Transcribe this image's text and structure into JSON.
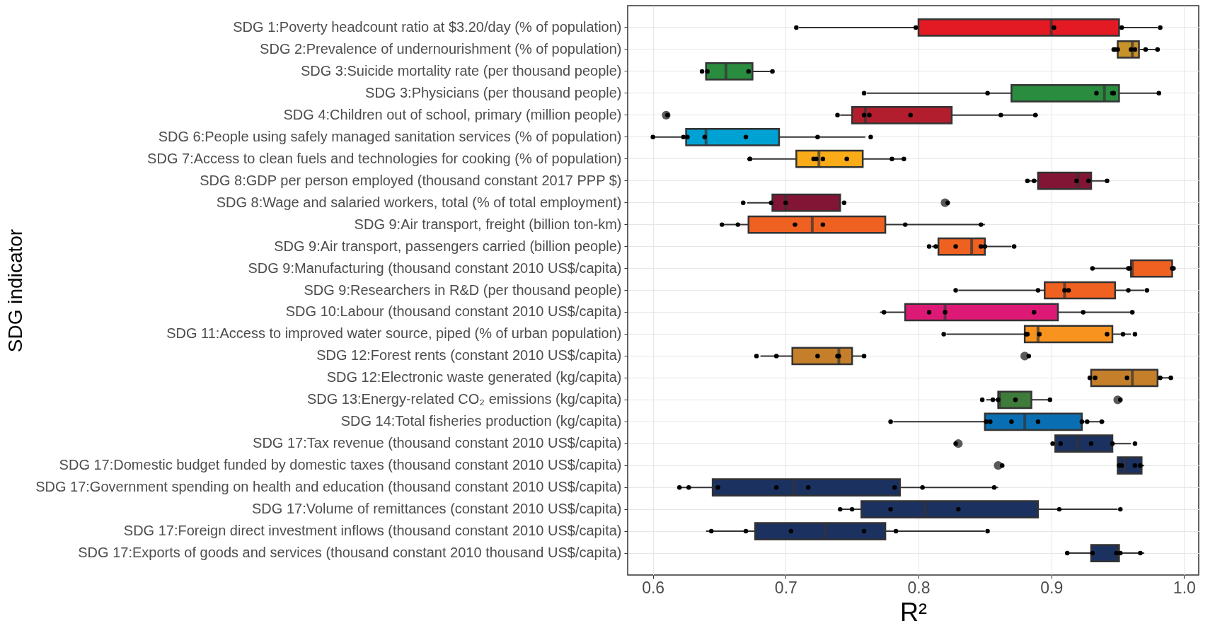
{
  "chart_data": {
    "type": "box",
    "orientation": "horizontal",
    "xlabel": "R²",
    "ylabel": "SDG indicator",
    "categories": [
      "SDG 1:Poverty headcount ratio at $3.20/day (% of population)",
      "SDG 2:Prevalence of undernourishment (% of population)",
      "SDG 3:Suicide mortality rate (per thousand people)",
      "SDG 3:Physicians (per thousand people)",
      "SDG 4:Children out of school, primary (million people)",
      "SDG 6:People using safely managed sanitation services (% of population)",
      "SDG 7:Access to clean fuels and technologies for cooking (% of population)",
      "SDG 8:GDP per person employed (thousand constant 2017 PPP $)",
      "SDG 8:Wage and salaried workers, total (% of total employment)",
      "SDG 9:Air transport, freight (billion ton-km)",
      "SDG 9:Air transport, passengers carried (billion people)",
      "SDG 9:Manufacturing (thousand constant 2010 US$/capita)",
      "SDG 9:Researchers in R&D (per thousand people)",
      "SDG 10:Labour (thousand constant 2010 US$/capita)",
      "SDG 11:Access to improved water source, piped (% of urban population)",
      "SDG 12:Forest rents (constant 2010 US$/capita)",
      "SDG 12:Electronic waste generated (kg/capita)",
      "SDG 13:Energy-related CO₂ emissions (kg/capita)",
      "SDG 14:Total fisheries production (kg/capita)",
      "SDG 17:Tax revenue (thousand constant 2010 US$/capita)",
      "SDG 17:Domestic budget funded by domestic taxes (thousand constant 2010 US$/capita)",
      "SDG 17:Government spending on health and education (thousand constant 2010 US$/capita)",
      "SDG 17:Volume of remittances (constant 2010 US$/capita)",
      "SDG 17:Foreign direct investment inflows (thousand constant 2010 US$/capita)",
      "SDG 17:Exports of goods and services (thousand constant 2010 thousand US$/capita)"
    ],
    "colors": [
      "#e31a23",
      "#c8922a",
      "#2a8c3f",
      "#2a8c3f",
      "#b31e2e",
      "#00a1d3",
      "#f9ab18",
      "#821535",
      "#821535",
      "#ef6121",
      "#ef6121",
      "#ef6121",
      "#ef6121",
      "#dc1a76",
      "#f7931e",
      "#c57f2a",
      "#c57f2a",
      "#3f7b3a",
      "#0a6fb2",
      "#1b3160",
      "#1b3160",
      "#1b3160",
      "#1b3160",
      "#1b3160",
      "#1b3160"
    ],
    "boxes": [
      {
        "low": 0.71,
        "q1": 0.8,
        "median": 0.9,
        "q3": 0.951,
        "high": 0.98
      },
      {
        "low": 0.95,
        "q1": 0.95,
        "median": 0.961,
        "q3": 0.966,
        "high": 0.98
      },
      {
        "low": 0.64,
        "q1": 0.64,
        "median": 0.655,
        "q3": 0.675,
        "high": 0.69
      },
      {
        "low": 0.761,
        "q1": 0.87,
        "median": 0.94,
        "q3": 0.951,
        "high": 0.98
      },
      {
        "low": 0.741,
        "q1": 0.75,
        "median": 0.76,
        "q3": 0.825,
        "high": 0.89,
        "outliers": [
          0.61
        ]
      },
      {
        "low": 0.601,
        "q1": 0.625,
        "median": 0.64,
        "q3": 0.695,
        "high": 0.76
      },
      {
        "low": 0.671,
        "q1": 0.708,
        "median": 0.725,
        "q3": 0.758,
        "high": 0.79
      },
      {
        "low": 0.881,
        "q1": 0.89,
        "median": 0.92,
        "q3": 0.93,
        "high": 0.942
      },
      {
        "low": 0.671,
        "q1": 0.69,
        "median": 0.7,
        "q3": 0.741,
        "high": 0.741,
        "outliers": [
          0.82
        ]
      },
      {
        "low": 0.651,
        "q1": 0.672,
        "median": 0.72,
        "q3": 0.775,
        "high": 0.85
      },
      {
        "low": 0.81,
        "q1": 0.815,
        "median": 0.84,
        "q3": 0.85,
        "high": 0.87
      },
      {
        "low": 0.931,
        "q1": 0.96,
        "median": 0.961,
        "q3": 0.991,
        "high": 0.991
      },
      {
        "low": 0.83,
        "q1": 0.895,
        "median": 0.91,
        "q3": 0.948,
        "high": 0.97
      },
      {
        "low": 0.771,
        "q1": 0.79,
        "median": 0.82,
        "q3": 0.905,
        "high": 0.96
      },
      {
        "low": 0.821,
        "q1": 0.88,
        "median": 0.89,
        "q3": 0.946,
        "high": 0.96
      },
      {
        "low": 0.681,
        "q1": 0.705,
        "median": 0.74,
        "q3": 0.75,
        "high": 0.759,
        "outliers": [
          0.88
        ]
      },
      {
        "low": 0.93,
        "q1": 0.93,
        "median": 0.961,
        "q3": 0.98,
        "high": 0.99
      },
      {
        "low": 0.851,
        "q1": 0.86,
        "median": 0.861,
        "q3": 0.885,
        "high": 0.9,
        "outliers": [
          0.95
        ]
      },
      {
        "low": 0.781,
        "q1": 0.85,
        "median": 0.88,
        "q3": 0.923,
        "high": 0.94
      },
      {
        "low": 0.901,
        "q1": 0.903,
        "median": 0.92,
        "q3": 0.946,
        "high": 0.96,
        "outliers": [
          0.83
        ]
      },
      {
        "low": 0.95,
        "q1": 0.95,
        "median": 0.955,
        "q3": 0.968,
        "high": 0.97,
        "outliers": [
          0.86
        ]
      },
      {
        "low": 0.621,
        "q1": 0.645,
        "median": 0.706,
        "q3": 0.786,
        "high": 0.86
      },
      {
        "low": 0.741,
        "q1": 0.757,
        "median": 0.805,
        "q3": 0.89,
        "high": 0.95
      },
      {
        "low": 0.64,
        "q1": 0.677,
        "median": 0.73,
        "q3": 0.775,
        "high": 0.85
      },
      {
        "low": 0.911,
        "q1": 0.93,
        "median": 0.95,
        "q3": 0.951,
        "high": 0.97
      }
    ],
    "xlim": [
      0.581,
      1.011
    ],
    "xticks": [
      0.6,
      0.7,
      0.8,
      0.9,
      {
        "value": 1.0,
        "label": "1.0"
      }
    ],
    "grid": true,
    "series": [
      {
        "type": "scatter",
        "color": "#000000",
        "x": [
          "SDG 1:Poverty headcount ratio at $3.20/day (% of population)",
          "SDG 1:Poverty headcount ratio at $3.20/day (% of population)",
          "SDG 1:Poverty headcount ratio at $3.20/day (% of population)",
          "SDG 1:Poverty headcount ratio at $3.20/day (% of population)",
          "SDG 1:Poverty headcount ratio at $3.20/day (% of population)",
          "SDG 2:Prevalence of undernourishment (% of population)",
          "SDG 2:Prevalence of undernourishment (% of population)",
          "SDG 2:Prevalence of undernourishment (% of population)",
          "SDG 2:Prevalence of undernourishment (% of population)",
          "SDG 2:Prevalence of undernourishment (% of population)",
          "SDG 2:Prevalence of undernourishment (% of population)",
          "SDG 2:Prevalence of undernourishment (% of population)",
          "SDG 3:Suicide mortality rate (per thousand people)",
          "SDG 3:Suicide mortality rate (per thousand people)",
          "SDG 3:Suicide mortality rate (per thousand people)",
          "SDG 3:Suicide mortality rate (per thousand people)",
          "SDG 3:Physicians (per thousand people)",
          "SDG 3:Physicians (per thousand people)",
          "SDG 3:Physicians (per thousand people)",
          "SDG 3:Physicians (per thousand people)",
          "SDG 3:Physicians (per thousand people)",
          "SDG 3:Physicians (per thousand people)",
          "SDG 4:Children out of school, primary (million people)",
          "SDG 4:Children out of school, primary (million people)",
          "SDG 4:Children out of school, primary (million people)",
          "SDG 4:Children out of school, primary (million people)",
          "SDG 4:Children out of school, primary (million people)",
          "SDG 4:Children out of school, primary (million people)",
          "SDG 4:Children out of school, primary (million people)",
          "SDG 6:People using safely managed sanitation services (% of population)",
          "SDG 6:People using safely managed sanitation services (% of population)",
          "SDG 6:People using safely managed sanitation services (% of population)",
          "SDG 6:People using safely managed sanitation services (% of population)",
          "SDG 6:People using safely managed sanitation services (% of population)",
          "SDG 6:People using safely managed sanitation services (% of population)",
          "SDG 6:People using safely managed sanitation services (% of population)",
          "SDG 7:Access to clean fuels and technologies for cooking (% of population)",
          "SDG 7:Access to clean fuels and technologies for cooking (% of population)",
          "SDG 7:Access to clean fuels and technologies for cooking (% of population)",
          "SDG 7:Access to clean fuels and technologies for cooking (% of population)",
          "SDG 7:Access to clean fuels and technologies for cooking (% of population)",
          "SDG 7:Access to clean fuels and technologies for cooking (% of population)",
          "SDG 7:Access to clean fuels and technologies for cooking (% of population)",
          "SDG 7:Access to clean fuels and technologies for cooking (% of population)",
          "SDG 8:GDP per person employed (thousand constant 2017 PPP $)",
          "SDG 8:GDP per person employed (thousand constant 2017 PPP $)",
          "SDG 8:GDP per person employed (thousand constant 2017 PPP $)",
          "SDG 8:GDP per person employed (thousand constant 2017 PPP $)",
          "SDG 8:GDP per person employed (thousand constant 2017 PPP $)",
          "SDG 8:Wage and salaried workers, total (% of total employment)",
          "SDG 8:Wage and salaried workers, total (% of total employment)",
          "SDG 8:Wage and salaried workers, total (% of total employment)",
          "SDG 8:Wage and salaried workers, total (% of total employment)",
          "SDG 8:Wage and salaried workers, total (% of total employment)",
          "SDG 9:Air transport, freight (billion ton-km)",
          "SDG 9:Air transport, freight (billion ton-km)",
          "SDG 9:Air transport, freight (billion ton-km)",
          "SDG 9:Air transport, freight (billion ton-km)",
          "SDG 9:Air transport, freight (billion ton-km)",
          "SDG 9:Air transport, freight (billion ton-km)",
          "SDG 9:Air transport, passengers carried (billion people)",
          "SDG 9:Air transport, passengers carried (billion people)",
          "SDG 9:Air transport, passengers carried (billion people)",
          "SDG 9:Air transport, passengers carried (billion people)",
          "SDG 9:Air transport, passengers carried (billion people)",
          "SDG 9:Air transport, passengers carried (billion people)",
          "SDG 9:Manufacturing (thousand constant 2010 US$/capita)",
          "SDG 9:Manufacturing (thousand constant 2010 US$/capita)",
          "SDG 9:Manufacturing (thousand constant 2010 US$/capita)",
          "SDG 9:Manufacturing (thousand constant 2010 US$/capita)",
          "SDG 9:Manufacturing (thousand constant 2010 US$/capita)",
          "SDG 9:Researchers in R&D (per thousand people)",
          "SDG 9:Researchers in R&D (per thousand people)",
          "SDG 9:Researchers in R&D (per thousand people)",
          "SDG 9:Researchers in R&D (per thousand people)",
          "SDG 9:Researchers in R&D (per thousand people)",
          "SDG 9:Researchers in R&D (per thousand people)",
          "SDG 10:Labour (thousand constant 2010 US$/capita)",
          "SDG 10:Labour (thousand constant 2010 US$/capita)",
          "SDG 10:Labour (thousand constant 2010 US$/capita)",
          "SDG 10:Labour (thousand constant 2010 US$/capita)",
          "SDG 10:Labour (thousand constant 2010 US$/capita)",
          "SDG 10:Labour (thousand constant 2010 US$/capita)",
          "SDG 11:Access to improved water source, piped (% of urban population)",
          "SDG 11:Access to improved water source, piped (% of urban population)",
          "SDG 11:Access to improved water source, piped (% of urban population)",
          "SDG 11:Access to improved water source, piped (% of urban population)",
          "SDG 11:Access to improved water source, piped (% of urban population)",
          "SDG 11:Access to improved water source, piped (% of urban population)",
          "SDG 11:Access to improved water source, piped (% of urban population)",
          "SDG 12:Forest rents (constant 2010 US$/capita)",
          "SDG 12:Forest rents (constant 2010 US$/capita)",
          "SDG 12:Forest rents (constant 2010 US$/capita)",
          "SDG 12:Forest rents (constant 2010 US$/capita)",
          "SDG 12:Forest rents (constant 2010 US$/capita)",
          "SDG 12:Forest rents (constant 2010 US$/capita)",
          "SDG 12:Forest rents (constant 2010 US$/capita)",
          "SDG 12:Electronic waste generated (kg/capita)",
          "SDG 12:Electronic waste generated (kg/capita)",
          "SDG 12:Electronic waste generated (kg/capita)",
          "SDG 12:Electronic waste generated (kg/capita)",
          "SDG 12:Electronic waste generated (kg/capita)",
          "SDG 13:Energy-related CO₂ emissions (kg/capita)",
          "SDG 13:Energy-related CO₂ emissions (kg/capita)",
          "SDG 13:Energy-related CO₂ emissions (kg/capita)",
          "SDG 13:Energy-related CO₂ emissions (kg/capita)",
          "SDG 13:Energy-related CO₂ emissions (kg/capita)",
          "SDG 13:Energy-related CO₂ emissions (kg/capita)",
          "SDG 14:Total fisheries production (kg/capita)",
          "SDG 14:Total fisheries production (kg/capita)",
          "SDG 14:Total fisheries production (kg/capita)",
          "SDG 14:Total fisheries production (kg/capita)",
          "SDG 14:Total fisheries production (kg/capita)",
          "SDG 14:Total fisheries production (kg/capita)",
          "SDG 14:Total fisheries production (kg/capita)",
          "SDG 14:Total fisheries production (kg/capita)",
          "SDG 17:Tax revenue (thousand constant 2010 US$/capita)",
          "SDG 17:Tax revenue (thousand constant 2010 US$/capita)",
          "SDG 17:Tax revenue (thousand constant 2010 US$/capita)",
          "SDG 17:Tax revenue (thousand constant 2010 US$/capita)",
          "SDG 17:Tax revenue (thousand constant 2010 US$/capita)",
          "SDG 17:Tax revenue (thousand constant 2010 US$/capita)",
          "SDG 17:Domestic budget funded by domestic taxes (thousand constant 2010 US$/capita)",
          "SDG 17:Domestic budget funded by domestic taxes (thousand constant 2010 US$/capita)",
          "SDG 17:Domestic budget funded by domestic taxes (thousand constant 2010 US$/capita)",
          "SDG 17:Domestic budget funded by domestic taxes (thousand constant 2010 US$/capita)",
          "SDG 17:Domestic budget funded by domestic taxes (thousand constant 2010 US$/capita)",
          "SDG 17:Government spending on health and education (thousand constant 2010 US$/capita)",
          "SDG 17:Government spending on health and education (thousand constant 2010 US$/capita)",
          "SDG 17:Government spending on health and education (thousand constant 2010 US$/capita)",
          "SDG 17:Government spending on health and education (thousand constant 2010 US$/capita)",
          "SDG 17:Government spending on health and education (thousand constant 2010 US$/capita)",
          "SDG 17:Government spending on health and education (thousand constant 2010 US$/capita)",
          "SDG 17:Government spending on health and education (thousand constant 2010 US$/capita)",
          "SDG 17:Government spending on health and education (thousand constant 2010 US$/capita)",
          "SDG 17:Volume of remittances (constant 2010 US$/capita)",
          "SDG 17:Volume of remittances (constant 2010 US$/capita)",
          "SDG 17:Volume of remittances (constant 2010 US$/capita)",
          "SDG 17:Volume of remittances (constant 2010 US$/capita)",
          "SDG 17:Volume of remittances (constant 2010 US$/capita)",
          "SDG 17:Volume of remittances (constant 2010 US$/capita)",
          "SDG 17:Foreign direct investment inflows (thousand constant 2010 US$/capita)",
          "SDG 17:Foreign direct investment inflows (thousand constant 2010 US$/capita)",
          "SDG 17:Foreign direct investment inflows (thousand constant 2010 US$/capita)",
          "SDG 17:Foreign direct investment inflows (thousand constant 2010 US$/capita)",
          "SDG 17:Foreign direct investment inflows (thousand constant 2010 US$/capita)",
          "SDG 17:Foreign direct investment inflows (thousand constant 2010 US$/capita)",
          "SDG 17:Exports of goods and services (thousand constant 2010 thousand US$/capita)",
          "SDG 17:Exports of goods and services (thousand constant 2010 thousand US$/capita)",
          "SDG 17:Exports of goods and services (thousand constant 2010 thousand US$/capita)",
          "SDG 17:Exports of goods and services (thousand constant 2010 thousand US$/capita)",
          "SDG 17:Exports of goods and services (thousand constant 2010 thousand US$/capita)"
        ],
        "values": [
          0.708,
          0.798,
          0.902,
          0.953,
          0.982,
          0.947,
          0.948,
          0.95,
          0.96,
          0.963,
          0.971,
          0.98,
          0.637,
          0.641,
          0.672,
          0.69,
          0.759,
          0.852,
          0.934,
          0.946,
          0.947,
          0.981,
          0.611,
          0.739,
          0.759,
          0.763,
          0.794,
          0.862,
          0.888,
          0.6,
          0.623,
          0.626,
          0.639,
          0.67,
          0.724,
          0.764,
          0.673,
          0.673,
          0.721,
          0.723,
          0.728,
          0.746,
          0.78,
          0.789,
          0.882,
          0.887,
          0.919,
          0.928,
          0.942,
          0.668,
          0.689,
          0.7,
          0.744,
          0.822,
          0.652,
          0.664,
          0.707,
          0.728,
          0.79,
          0.847,
          0.808,
          0.813,
          0.828,
          0.847,
          0.85,
          0.872,
          0.931,
          0.958,
          0.959,
          0.991,
          0.992,
          0.828,
          0.89,
          0.91,
          0.913,
          0.958,
          0.972,
          0.774,
          0.808,
          0.82,
          0.887,
          0.924,
          0.961,
          0.819,
          0.881,
          0.882,
          0.891,
          0.942,
          0.954,
          0.963,
          0.678,
          0.693,
          0.724,
          0.739,
          0.74,
          0.759,
          0.883,
          0.929,
          0.933,
          0.957,
          0.982,
          0.99,
          0.848,
          0.856,
          0.86,
          0.873,
          0.899,
          0.952,
          0.779,
          0.851,
          0.854,
          0.87,
          0.89,
          0.923,
          0.927,
          0.938,
          0.828,
          0.901,
          0.907,
          0.93,
          0.946,
          0.963,
          0.863,
          0.951,
          0.953,
          0.963,
          0.967,
          0.62,
          0.627,
          0.649,
          0.693,
          0.717,
          0.782,
          0.803,
          0.857,
          0.741,
          0.75,
          0.779,
          0.83,
          0.906,
          0.952,
          0.644,
          0.67,
          0.704,
          0.759,
          0.783,
          0.852,
          0.912,
          0.931,
          0.949,
          0.952,
          0.967
        ]
      }
    ]
  }
}
